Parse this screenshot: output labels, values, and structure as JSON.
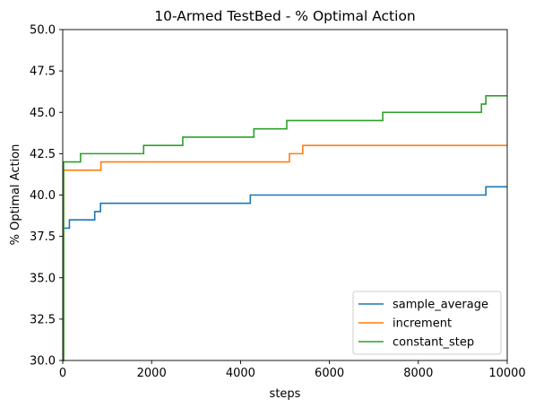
{
  "chart_data": {
    "type": "line",
    "title": "10-Armed TestBed - % Optimal Action",
    "xlabel": "steps",
    "ylabel": "% Optimal Action",
    "xlim": [
      0,
      10000
    ],
    "ylim": [
      30,
      50
    ],
    "x_ticks": [
      "0",
      "2000",
      "4000",
      "6000",
      "8000",
      "10000"
    ],
    "y_ticks": [
      "30.0",
      "32.5",
      "35.0",
      "37.5",
      "40.0",
      "42.5",
      "45.0",
      "47.5",
      "50.0"
    ],
    "grid": false,
    "legend_position": "lower right",
    "step_style": "post",
    "series": [
      {
        "name": "sample_average",
        "color": "#1f77b4",
        "x": [
          0,
          20,
          150,
          720,
          850,
          4220,
          9520,
          10000
        ],
        "y": [
          30,
          38.0,
          38.5,
          39.0,
          39.5,
          40.0,
          40.5,
          40.5
        ]
      },
      {
        "name": "increment",
        "color": "#ff7f0e",
        "x": [
          0,
          20,
          860,
          5100,
          5400,
          10000
        ],
        "y": [
          30,
          41.5,
          42.0,
          42.5,
          43.0,
          43.0
        ]
      },
      {
        "name": "constant_step",
        "color": "#2ca02c",
        "x": [
          0,
          20,
          400,
          1820,
          2700,
          4300,
          5040,
          7200,
          9420,
          9520,
          10000
        ],
        "y": [
          30,
          42.0,
          42.5,
          43.0,
          43.5,
          44.0,
          44.5,
          45.0,
          45.5,
          46.0,
          46.0
        ]
      }
    ]
  }
}
